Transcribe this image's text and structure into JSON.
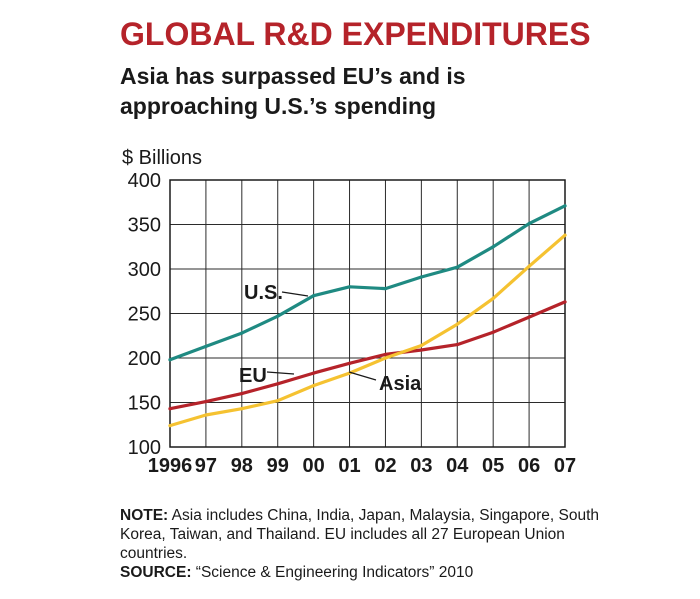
{
  "chart_data": {
    "type": "line",
    "title": "GLOBAL R&D EXPENDITURES",
    "subtitle": "Asia has surpassed EU’s and is approaching U.S.’s spending",
    "ylabel": "$ Billions",
    "xlabel": "",
    "x": [
      "1996",
      "97",
      "98",
      "99",
      "00",
      "01",
      "02",
      "03",
      "04",
      "05",
      "06",
      "07"
    ],
    "ylim": [
      100,
      400
    ],
    "yticks": [
      100,
      150,
      200,
      250,
      300,
      350,
      400
    ],
    "grid": true,
    "series": [
      {
        "name": "U.S.",
        "color": "#1f8a82",
        "values": [
          198,
          213,
          228,
          247,
          270,
          280,
          278,
          291,
          302,
          325,
          351,
          371
        ]
      },
      {
        "name": "EU",
        "color": "#b5232a",
        "values": [
          143,
          151,
          160,
          171,
          183,
          194,
          204,
          209,
          215,
          229,
          246,
          263
        ]
      },
      {
        "name": "Asia",
        "color": "#f5c231",
        "values": [
          124,
          136,
          143,
          152,
          169,
          183,
          200,
          214,
          238,
          267,
          303,
          338
        ]
      }
    ]
  },
  "notes": {
    "note_label": "NOTE:",
    "note_text": " Asia includes China, India, Japan, Malaysia, Singapore, South Korea, Taiwan, and Thailand. EU includes all 27 European Union countries.",
    "source_label": "SOURCE:",
    "source_text": " “Science & Engineering Indicators” 2010"
  }
}
